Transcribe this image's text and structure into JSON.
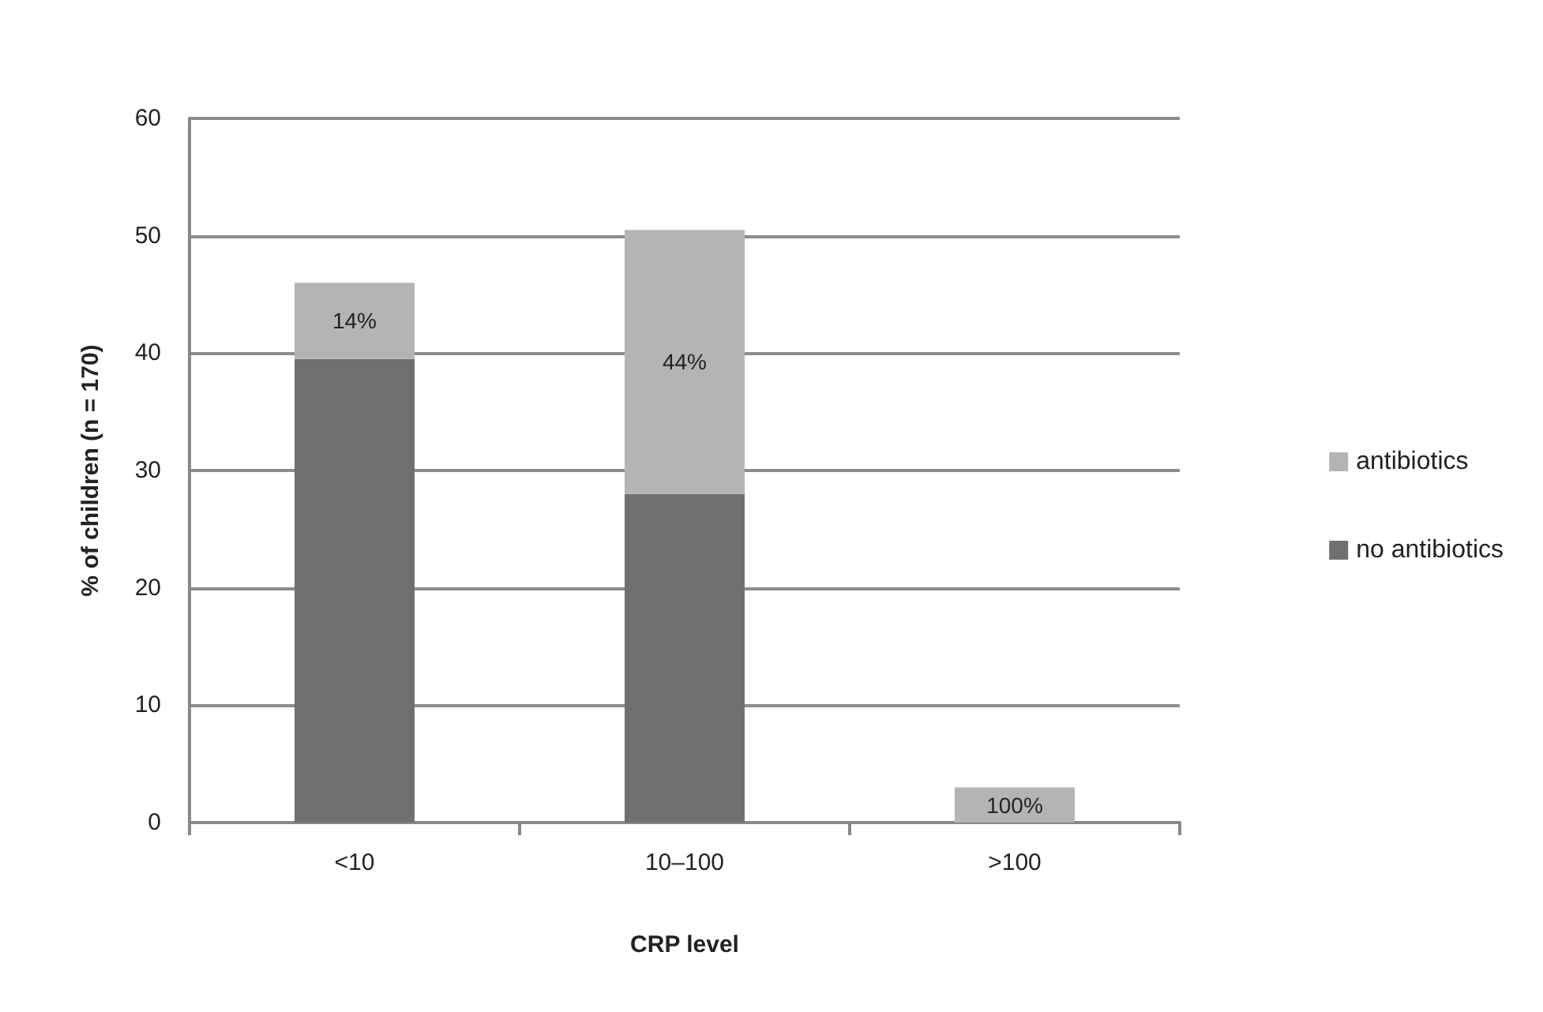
{
  "chart_data": {
    "type": "bar",
    "stacked": true,
    "xlabel": "CRP level",
    "ylabel": "% of children (n = 170)",
    "categories": [
      "<10",
      "10–100",
      ">100"
    ],
    "series": [
      {
        "name": "no antibiotics",
        "color": "#707070",
        "values": [
          39.5,
          28,
          0
        ]
      },
      {
        "name": "antibiotics",
        "color": "#b4b4b4",
        "values": [
          6.5,
          22.5,
          3
        ]
      }
    ],
    "annotations": [
      "14%",
      "44%",
      "100%"
    ],
    "ylim": [
      0,
      60
    ],
    "yticks": [
      0,
      10,
      20,
      30,
      40,
      50,
      60
    ],
    "grid": "y",
    "legend": "right"
  }
}
